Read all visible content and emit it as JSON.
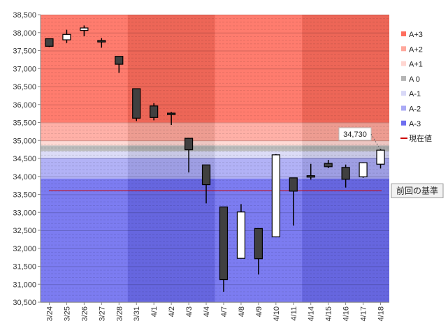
{
  "chart_data": {
    "type": "candlestick",
    "y_axis": {
      "min": 30500,
      "max": 38500,
      "step": 500
    },
    "categories": [
      "3/24",
      "3/25",
      "3/26",
      "3/27",
      "3/28",
      "3/31",
      "4/1",
      "4/2",
      "4/3",
      "4/4",
      "4/7",
      "4/8",
      "4/9",
      "4/10",
      "4/11",
      "4/14",
      "4/15",
      "4/16",
      "4/17",
      "4/18"
    ],
    "y_tick_labels": [
      "30,500",
      "31,000",
      "31,500",
      "32,000",
      "32,500",
      "33,000",
      "33,500",
      "34,000",
      "34,500",
      "35,000",
      "35,500",
      "36,000",
      "36,500",
      "37,000",
      "37,500",
      "38,000",
      "38,500"
    ],
    "candles": [
      {
        "date": "3/24",
        "open": 37830,
        "high": 37830,
        "low": 37600,
        "close": 37620
      },
      {
        "date": "3/25",
        "open": 37800,
        "high": 38080,
        "low": 37710,
        "close": 37950
      },
      {
        "date": "3/26",
        "open": 38060,
        "high": 38200,
        "low": 37900,
        "close": 38130
      },
      {
        "date": "3/27",
        "open": 37780,
        "high": 37850,
        "low": 37580,
        "close": 37740
      },
      {
        "date": "3/28",
        "open": 37340,
        "high": 37340,
        "low": 36880,
        "close": 37120
      },
      {
        "date": "3/31",
        "open": 36440,
        "high": 36440,
        "low": 35540,
        "close": 35620
      },
      {
        "date": "4/1",
        "open": 35960,
        "high": 36040,
        "low": 35560,
        "close": 35640
      },
      {
        "date": "4/2",
        "open": 35760,
        "high": 35790,
        "low": 35430,
        "close": 35720
      },
      {
        "date": "4/3",
        "open": 35060,
        "high": 35060,
        "low": 34110,
        "close": 34740
      },
      {
        "date": "4/4",
        "open": 34320,
        "high": 34320,
        "low": 33250,
        "close": 33770
      },
      {
        "date": "4/7",
        "open": 33150,
        "high": 33150,
        "low": 30790,
        "close": 31130
      },
      {
        "date": "4/8",
        "open": 31720,
        "high": 33230,
        "low": 31720,
        "close": 33010
      },
      {
        "date": "4/9",
        "open": 32550,
        "high": 32550,
        "low": 31270,
        "close": 31710
      },
      {
        "date": "4/10",
        "open": 32320,
        "high": 34620,
        "low": 32320,
        "close": 34600
      },
      {
        "date": "4/11",
        "open": 33960,
        "high": 33960,
        "low": 32630,
        "close": 33590
      },
      {
        "date": "4/14",
        "open": 34020,
        "high": 34350,
        "low": 33910,
        "close": 33980
      },
      {
        "date": "4/15",
        "open": 34360,
        "high": 34460,
        "low": 34230,
        "close": 34270
      },
      {
        "date": "4/16",
        "open": 34250,
        "high": 34330,
        "low": 33690,
        "close": 33920
      },
      {
        "date": "4/17",
        "open": 33990,
        "high": 34390,
        "low": 33960,
        "close": 34380
      },
      {
        "date": "4/18",
        "open": 34340,
        "high": 34760,
        "low": 34220,
        "close": 34730
      }
    ],
    "zones": [
      {
        "name": "A+3",
        "from": 35500,
        "to": 38500,
        "color": "#ff6e5e"
      },
      {
        "name": "A+2",
        "from": 34980,
        "to": 35500,
        "color": "#ffa89d"
      },
      {
        "name": "A+1",
        "from": 34860,
        "to": 34980,
        "color": "#ffd6d1"
      },
      {
        "name": "A 0",
        "from": 34700,
        "to": 34860,
        "color": "#b5b5b5"
      },
      {
        "name": "A-1",
        "from": 34520,
        "to": 34700,
        "color": "#d8d8f7"
      },
      {
        "name": "A-2",
        "from": 33940,
        "to": 34520,
        "color": "#aaaaf5"
      },
      {
        "name": "A-3",
        "from": 30500,
        "to": 33940,
        "color": "#6e6ef0"
      }
    ],
    "legend": [
      {
        "label": "A+3",
        "color": "#ff6e5e",
        "kind": "box"
      },
      {
        "label": "A+2",
        "color": "#ffa89d",
        "kind": "box"
      },
      {
        "label": "A+1",
        "color": "#ffd6d1",
        "kind": "box"
      },
      {
        "label": "A 0",
        "color": "#b5b5b5",
        "kind": "box"
      },
      {
        "label": "A-1",
        "color": "#d8d8f7",
        "kind": "box"
      },
      {
        "label": "A-2",
        "color": "#aaaaf5",
        "kind": "box"
      },
      {
        "label": "A-3",
        "color": "#6e6ef0",
        "kind": "box"
      },
      {
        "label": "現在値",
        "color": "#cc0000",
        "kind": "line"
      }
    ],
    "current_value": 34730,
    "current_value_label": "34,730",
    "reference_line": {
      "value": 33600,
      "label": "前回の基準",
      "color": "#cc0000"
    },
    "week_band_colors": [
      "#ffffff",
      "#000000"
    ],
    "legend_position": "right"
  }
}
